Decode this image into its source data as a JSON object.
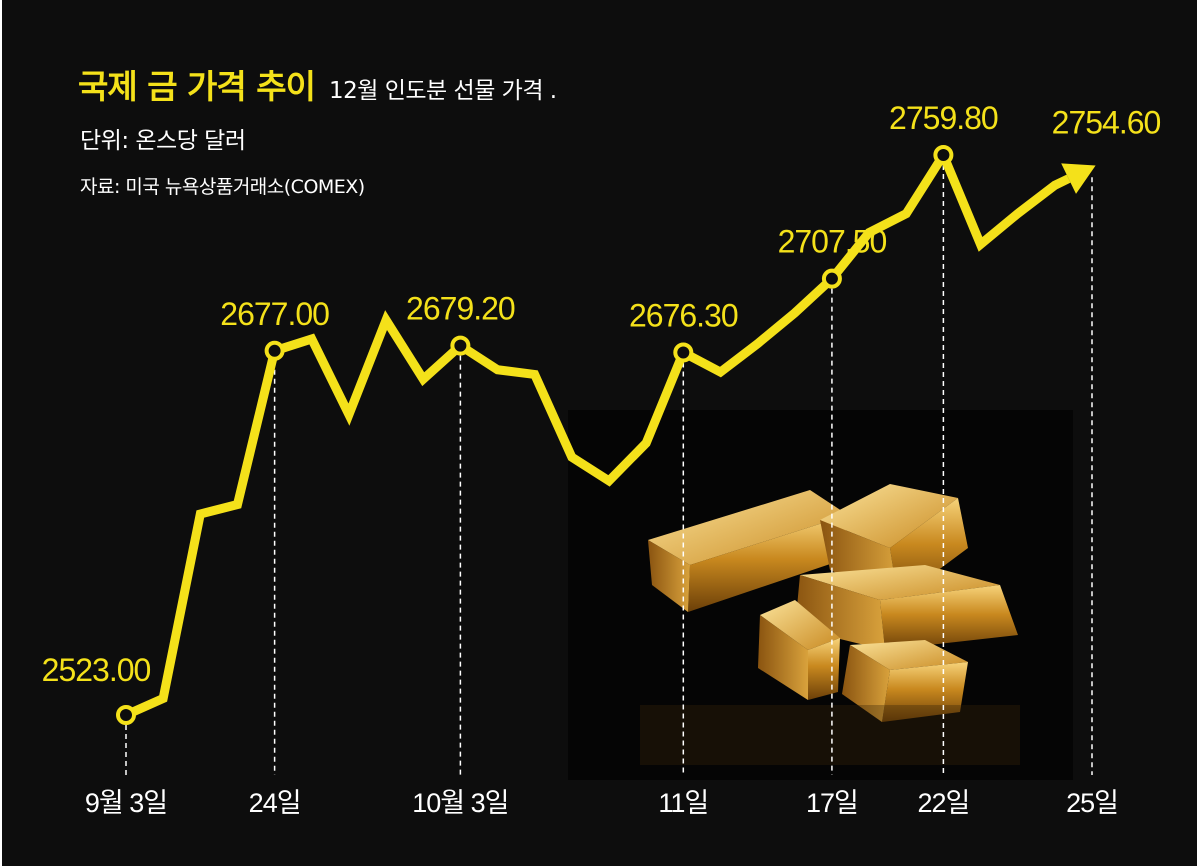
{
  "title": "국제 금 가격 추이",
  "subtitle": "12월 인도분 선물 가격 .",
  "unit": "단위: 온스당 달러",
  "source": "자료: 미국 뉴욕상품거래소(COMEX)",
  "colors": {
    "line": "#f4e11a",
    "background": "#0d0d0d",
    "text": "#ffffff"
  },
  "chart_data": {
    "type": "line",
    "title": "국제 금 가격 추이",
    "ylabel": "단위: 온스당 달러",
    "ylim": [
      2500,
      2780
    ],
    "series": [
      {
        "name": "12월 인도분 선물 가격",
        "x": [
          0,
          1,
          2,
          3,
          4,
          5,
          6,
          7,
          8,
          9,
          10,
          11,
          12,
          13,
          14,
          15,
          16,
          17,
          18,
          19,
          20,
          21,
          22,
          23,
          24,
          25,
          26
        ],
        "values": [
          2523.0,
          2530.0,
          2608.0,
          2612.0,
          2677.0,
          2682.0,
          2650.0,
          2690.0,
          2665.0,
          2679.2,
          2669.0,
          2667.0,
          2632.0,
          2622.0,
          2638.0,
          2676.3,
          2668.0,
          2680.0,
          2693.0,
          2707.5,
          2727.0,
          2735.0,
          2759.8,
          2722.0,
          2735.0,
          2747.0,
          2754.6
        ]
      }
    ],
    "annotations": [
      {
        "index": 0,
        "label": "2523.00"
      },
      {
        "index": 4,
        "label": "2677.00"
      },
      {
        "index": 9,
        "label": "2679.20"
      },
      {
        "index": 15,
        "label": "2676.30"
      },
      {
        "index": 19,
        "label": "2707.50"
      },
      {
        "index": 22,
        "label": "2759.80"
      },
      {
        "index": 26,
        "label": "2754.60"
      }
    ],
    "x_ticks": [
      {
        "index": 0,
        "label": "9월 3일"
      },
      {
        "index": 4,
        "label": "24일"
      },
      {
        "index": 9,
        "label": "10월 3일"
      },
      {
        "index": 15,
        "label": "11일"
      },
      {
        "index": 19,
        "label": "17일"
      },
      {
        "index": 22,
        "label": "22일"
      },
      {
        "index": 26,
        "label": "25일"
      }
    ]
  }
}
